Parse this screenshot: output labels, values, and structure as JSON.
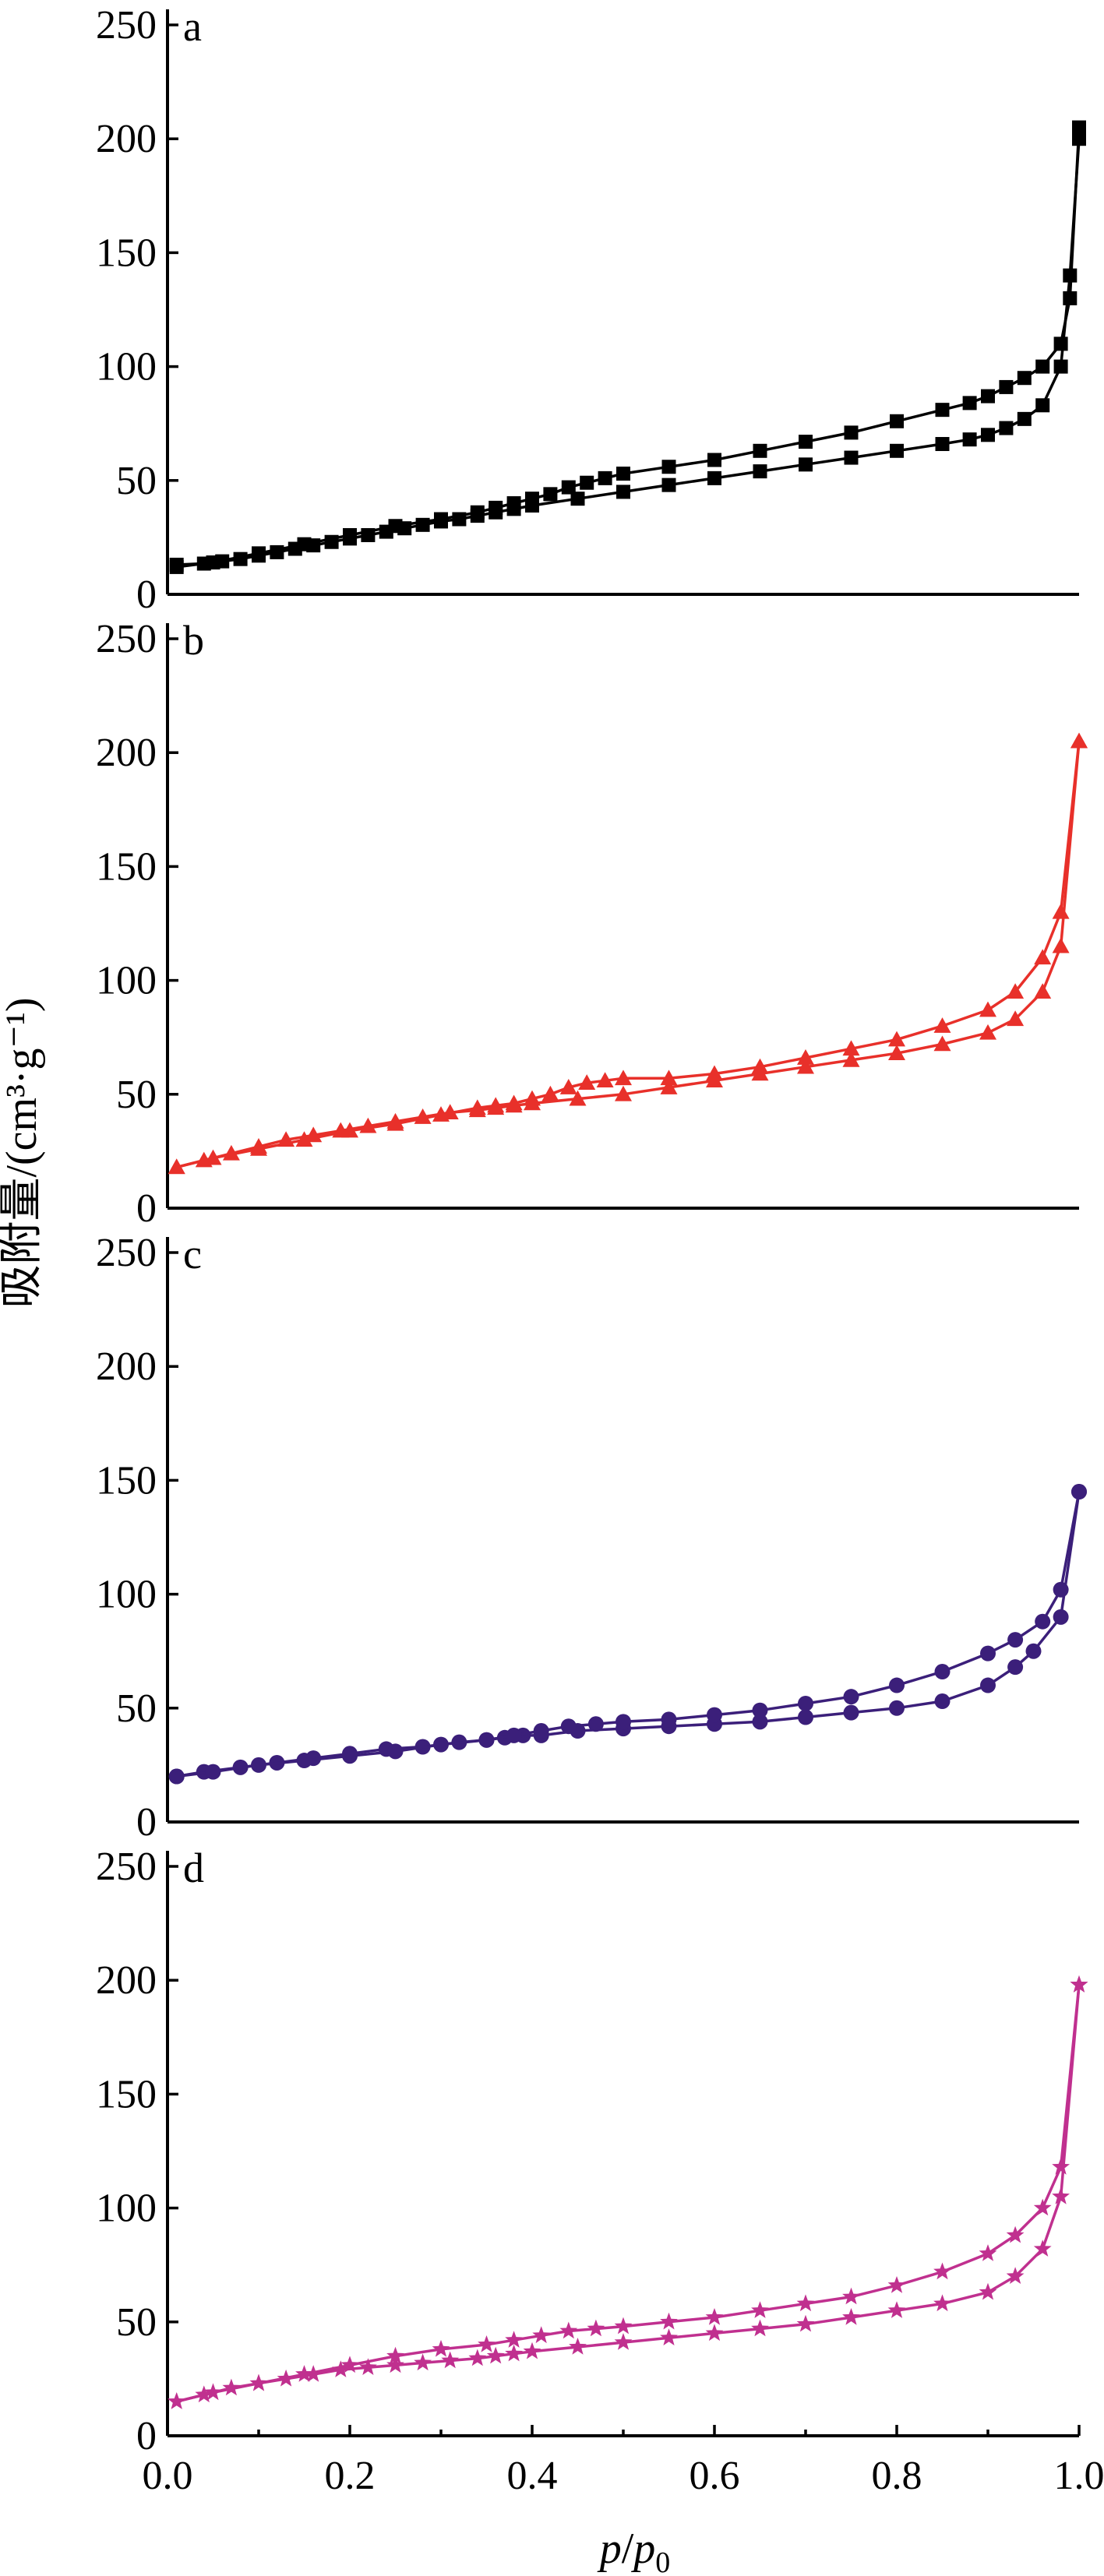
{
  "ylabel": "吸附量/(cm³·g⁻¹)",
  "xlabel": "p/p0",
  "xlabel_parts": {
    "p": "p",
    "slash": "/",
    "p0": "p",
    "sub": "0"
  },
  "chart_data": [
    {
      "type": "line",
      "panel_label": "a",
      "color": "#000000",
      "marker": "square",
      "xlim": [
        0,
        1
      ],
      "ylim": [
        0,
        250
      ],
      "yticks": [
        0,
        50,
        100,
        150,
        200,
        250
      ],
      "series": [
        {
          "x": [
            0.01,
            0.04,
            0.06,
            0.08,
            0.1,
            0.12,
            0.14,
            0.16,
            0.18,
            0.2,
            0.22,
            0.24,
            0.26,
            0.28,
            0.3,
            0.32,
            0.34,
            0.36,
            0.38,
            0.4,
            0.45,
            0.5,
            0.55,
            0.6,
            0.65,
            0.7,
            0.75,
            0.8,
            0.85,
            0.88,
            0.9,
            0.92,
            0.94,
            0.96,
            0.98,
            0.99,
            1.0
          ],
          "y": [
            13,
            13.5,
            14.5,
            15.5,
            17,
            18.5,
            20,
            21.5,
            23,
            24.5,
            26,
            27.5,
            29,
            30.5,
            32,
            33,
            34.5,
            36,
            37.5,
            39,
            42,
            45,
            48,
            51,
            54,
            57,
            60,
            63,
            66,
            68,
            70,
            73,
            77,
            83,
            100,
            140,
            200
          ]
        },
        {
          "x": [
            1.0,
            0.99,
            0.98,
            0.96,
            0.94,
            0.92,
            0.9,
            0.88,
            0.85,
            0.8,
            0.75,
            0.7,
            0.65,
            0.6,
            0.55,
            0.5,
            0.48,
            0.46,
            0.44,
            0.42,
            0.4,
            0.38,
            0.36,
            0.34,
            0.3,
            0.25,
            0.2,
            0.15,
            0.1,
            0.05,
            0.01
          ],
          "y": [
            205,
            130,
            110,
            100,
            95,
            91,
            87,
            84,
            81,
            76,
            71,
            67,
            63,
            59,
            56,
            53,
            51,
            49,
            47,
            44,
            42,
            40,
            38,
            36,
            33,
            30,
            26,
            22,
            18,
            14,
            12
          ]
        }
      ]
    },
    {
      "type": "line",
      "panel_label": "b",
      "color": "#e8302a",
      "marker": "triangle",
      "xlim": [
        0,
        1
      ],
      "ylim": [
        0,
        250
      ],
      "yticks": [
        0,
        50,
        100,
        150,
        200,
        250
      ],
      "series": [
        {
          "x": [
            0.01,
            0.04,
            0.07,
            0.1,
            0.13,
            0.16,
            0.19,
            0.22,
            0.25,
            0.28,
            0.31,
            0.34,
            0.36,
            0.38,
            0.4,
            0.45,
            0.5,
            0.55,
            0.6,
            0.65,
            0.7,
            0.75,
            0.8,
            0.85,
            0.9,
            0.93,
            0.96,
            0.98,
            1.0
          ],
          "y": [
            18,
            21,
            24,
            27,
            30,
            32,
            34,
            36,
            38,
            40,
            42,
            43,
            44,
            45,
            46,
            48,
            50,
            53,
            56,
            59,
            62,
            65,
            68,
            72,
            77,
            83,
            95,
            115,
            205
          ]
        },
        {
          "x": [
            1.0,
            0.98,
            0.96,
            0.93,
            0.9,
            0.85,
            0.8,
            0.75,
            0.7,
            0.65,
            0.6,
            0.55,
            0.5,
            0.48,
            0.46,
            0.44,
            0.42,
            0.4,
            0.38,
            0.36,
            0.34,
            0.3,
            0.25,
            0.2,
            0.15,
            0.1,
            0.05,
            0.01
          ],
          "y": [
            205,
            130,
            110,
            95,
            87,
            80,
            74,
            70,
            66,
            62,
            59,
            57,
            57,
            56,
            55,
            53,
            50,
            48,
            46,
            45,
            44,
            41,
            37,
            34,
            30,
            26,
            22,
            18
          ]
        }
      ]
    },
    {
      "type": "line",
      "panel_label": "c",
      "color": "#3b1f7a",
      "marker": "circle",
      "xlim": [
        0,
        1
      ],
      "ylim": [
        0,
        250
      ],
      "yticks": [
        0,
        50,
        100,
        150,
        200,
        250
      ],
      "series": [
        {
          "x": [
            0.01,
            0.04,
            0.08,
            0.12,
            0.16,
            0.2,
            0.24,
            0.28,
            0.32,
            0.35,
            0.37,
            0.39,
            0.41,
            0.45,
            0.5,
            0.55,
            0.6,
            0.65,
            0.7,
            0.75,
            0.8,
            0.85,
            0.9,
            0.93,
            0.95,
            0.98,
            1.0
          ],
          "y": [
            20,
            22,
            24,
            26,
            28,
            30,
            32,
            33,
            35,
            36,
            37,
            38,
            38,
            40,
            41,
            42,
            43,
            44,
            46,
            48,
            50,
            53,
            60,
            68,
            75,
            90,
            145
          ]
        },
        {
          "x": [
            1.0,
            0.98,
            0.96,
            0.93,
            0.9,
            0.85,
            0.8,
            0.75,
            0.7,
            0.65,
            0.6,
            0.55,
            0.5,
            0.47,
            0.44,
            0.41,
            0.38,
            0.35,
            0.3,
            0.25,
            0.2,
            0.15,
            0.1,
            0.05,
            0.01
          ],
          "y": [
            145,
            102,
            88,
            80,
            74,
            66,
            60,
            55,
            52,
            49,
            47,
            45,
            44,
            43,
            42,
            40,
            38,
            36,
            34,
            31,
            29,
            27,
            25,
            22,
            20
          ]
        }
      ]
    },
    {
      "type": "line",
      "panel_label": "d",
      "color": "#c0308f",
      "marker": "star",
      "xlim": [
        0,
        1
      ],
      "ylim": [
        0,
        250
      ],
      "yticks": [
        0,
        50,
        100,
        150,
        200,
        250
      ],
      "series": [
        {
          "x": [
            0.01,
            0.04,
            0.07,
            0.1,
            0.13,
            0.16,
            0.19,
            0.22,
            0.25,
            0.28,
            0.31,
            0.34,
            0.36,
            0.38,
            0.4,
            0.45,
            0.5,
            0.55,
            0.6,
            0.65,
            0.7,
            0.75,
            0.8,
            0.85,
            0.9,
            0.93,
            0.96,
            0.98,
            1.0
          ],
          "y": [
            15,
            18,
            21,
            23,
            25,
            27,
            29,
            30,
            31,
            32,
            33,
            34,
            35,
            36,
            37,
            39,
            41,
            43,
            45,
            47,
            49,
            52,
            55,
            58,
            63,
            70,
            82,
            105,
            198
          ]
        },
        {
          "x": [
            1.0,
            0.98,
            0.96,
            0.93,
            0.9,
            0.85,
            0.8,
            0.75,
            0.7,
            0.65,
            0.6,
            0.55,
            0.5,
            0.47,
            0.44,
            0.41,
            0.38,
            0.35,
            0.3,
            0.25,
            0.2,
            0.15,
            0.1,
            0.05,
            0.01
          ],
          "y": [
            198,
            118,
            100,
            88,
            80,
            72,
            66,
            61,
            58,
            55,
            52,
            50,
            48,
            47,
            46,
            44,
            42,
            40,
            38,
            35,
            31,
            27,
            23,
            19,
            15
          ]
        }
      ]
    }
  ]
}
